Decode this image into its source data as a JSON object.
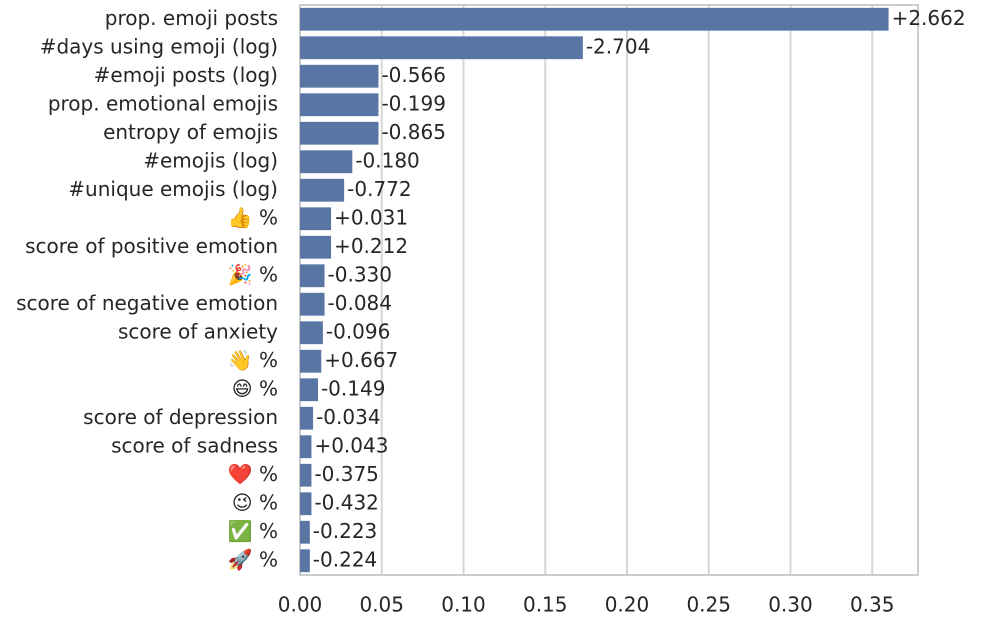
{
  "chart_data": {
    "type": "barh",
    "categories": [
      "prop. emoji posts",
      "#days using emoji (log)",
      "#emoji posts (log)",
      "prop. emotional emojis",
      "entropy of emojis",
      "#emojis (log)",
      "#unique emojis (log)",
      "👍 %",
      "score of positive emotion",
      "🎉 %",
      "score of negative emotion",
      "score of anxiety",
      "👋 %",
      "😄 %",
      "score of depression",
      "score of sadness",
      "❤️ %",
      "😉 %",
      "✅ %",
      "🚀 %"
    ],
    "values": [
      0.36,
      0.173,
      0.048,
      0.048,
      0.048,
      0.032,
      0.027,
      0.019,
      0.019,
      0.015,
      0.015,
      0.014,
      0.013,
      0.011,
      0.008,
      0.007,
      0.007,
      0.007,
      0.006,
      0.006
    ],
    "bar_annotations": [
      "+2.662",
      "-2.704",
      "-0.566",
      "-0.199",
      "-0.865",
      "-0.180",
      "-0.772",
      "+0.031",
      "+0.212",
      "-0.330",
      "-0.084",
      "-0.096",
      "+0.667",
      "-0.149",
      "-0.034",
      "+0.043",
      "-0.375",
      "-0.432",
      "-0.223",
      "-0.224"
    ],
    "color": "#5975a4",
    "xlim": [
      0,
      0.378
    ],
    "xticks": [
      {
        "value": 0,
        "label": "0.00"
      },
      0.05,
      {
        "value": 0.1,
        "label": "0.10"
      },
      0.15,
      {
        "value": 0.2,
        "label": "0.20"
      },
      0.25,
      {
        "value": 0.3,
        "label": "0.30"
      },
      0.35
    ],
    "grid": true
  }
}
